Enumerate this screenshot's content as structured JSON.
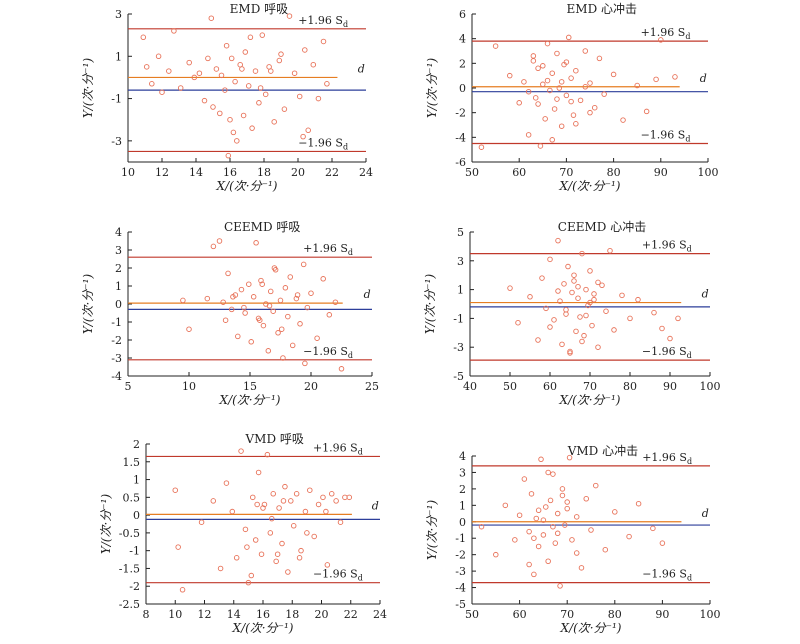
{
  "colors": {
    "axis": "#222222",
    "limit": "#c0392b",
    "bias": "#e67e22",
    "zero": "#2c3e9a",
    "point": "#e8735a"
  },
  "chart_data": [
    {
      "type": "scatter",
      "title": "EMD 呼吸",
      "xlabel": "X/(次·分⁻¹)",
      "ylabel": "Y/(次·分⁻¹)",
      "xlim": [
        10,
        24
      ],
      "ylim": [
        -4,
        3
      ],
      "xticks": [
        10,
        12,
        14,
        16,
        18,
        20,
        22,
        24
      ],
      "yticks": [
        -3,
        -1,
        1,
        3
      ],
      "upper_label": "+1.96 S",
      "lower_label": "−1.96 S",
      "sub": "d",
      "bias_label": "d",
      "upper": 2.3,
      "bias": 0.0,
      "zero": -0.6,
      "lower": -3.5,
      "x": [
        10.9,
        11.1,
        11.4,
        11.8,
        12.4,
        12.7,
        13.1,
        13.6,
        14.2,
        14.5,
        14.9,
        15.0,
        15.2,
        15.5,
        15.7,
        15.8,
        16.0,
        16.1,
        16.3,
        16.4,
        16.6,
        16.8,
        16.9,
        17.1,
        17.3,
        17.5,
        17.7,
        17.9,
        18.1,
        18.3,
        18.6,
        18.9,
        19.2,
        19.5,
        19.8,
        20.1,
        20.4,
        20.6,
        20.9,
        21.2,
        21.5,
        21.7,
        12.0,
        13.9,
        15.4,
        16.7,
        17.8,
        19.0,
        20.3,
        14.7,
        16.2,
        18.4,
        15.9,
        17.2
      ],
      "y": [
        1.9,
        0.5,
        -0.3,
        1.0,
        0.3,
        2.2,
        -0.5,
        0.7,
        0.2,
        -1.1,
        2.8,
        -1.4,
        0.4,
        0.1,
        -0.6,
        1.5,
        -2.0,
        0.9,
        -0.2,
        -3.0,
        0.6,
        -1.8,
        1.2,
        -0.4,
        -2.4,
        0.3,
        -1.2,
        2.0,
        -0.8,
        0.5,
        -2.1,
        0.8,
        -1.5,
        2.9,
        0.2,
        -0.9,
        1.3,
        -2.5,
        0.6,
        -1.0,
        1.7,
        -0.3,
        -0.7,
        0.0,
        -1.7,
        0.4,
        -0.5,
        1.1,
        -2.8,
        0.9,
        -2.6,
        0.3,
        -3.7,
        1.9
      ]
    },
    {
      "type": "scatter",
      "title": "EMD 心冲击",
      "xlabel": "X/(次·分⁻¹)",
      "ylabel": "Y/(次·分⁻¹)",
      "xlim": [
        50,
        100
      ],
      "ylim": [
        -6,
        6
      ],
      "xticks": [
        50,
        60,
        70,
        80,
        90,
        100
      ],
      "yticks": [
        -6,
        -4,
        -2,
        0,
        2,
        4,
        6
      ],
      "upper_label": "+1.96 S",
      "lower_label": "−1.96 S",
      "sub": "d",
      "bias_label": "d",
      "upper": 3.8,
      "bias": 0.1,
      "zero": -0.3,
      "lower": -4.5,
      "x": [
        52,
        55,
        58,
        60,
        61,
        62,
        63,
        63.5,
        64,
        64.5,
        65,
        65.5,
        66,
        66.5,
        67,
        67.5,
        68,
        68.5,
        69,
        69.5,
        70,
        70.5,
        71,
        71.5,
        72,
        73,
        74,
        75,
        76,
        77,
        78,
        80,
        82,
        85,
        87,
        89,
        90,
        93,
        62,
        64,
        66,
        68,
        70,
        72,
        74,
        65,
        67,
        69,
        71,
        63,
        75
      ],
      "y": [
        -4.8,
        3.4,
        1.0,
        -1.2,
        0.5,
        -3.8,
        2.2,
        -0.8,
        1.6,
        -4.7,
        0.3,
        -2.5,
        3.6,
        -0.2,
        1.2,
        -1.7,
        2.8,
        0.0,
        -3.1,
        1.9,
        -0.6,
        4.1,
        0.8,
        -2.2,
        1.4,
        -1.0,
        3.0,
        0.4,
        -1.6,
        2.4,
        -0.5,
        1.1,
        -2.6,
        0.2,
        -1.9,
        0.7,
        3.9,
        0.9,
        -0.3,
        -1.3,
        0.6,
        -0.9,
        2.1,
        -2.9,
        0.1,
        1.8,
        -4.2,
        0.5,
        -1.1,
        2.6,
        -2.0
      ]
    },
    {
      "type": "scatter",
      "title": "CEEMD 呼吸",
      "xlabel": "X/(次·分⁻¹)",
      "ylabel": "Y/(次·分⁻¹)",
      "xlim": [
        5,
        25
      ],
      "ylim": [
        -4,
        4
      ],
      "xticks": [
        5,
        10,
        15,
        20,
        25
      ],
      "yticks": [
        -4,
        -3,
        -2,
        -1,
        0,
        1,
        2,
        3,
        4
      ],
      "upper_label": "+1.96 S",
      "lower_label": "−1.96 S",
      "sub": "d",
      "bias_label": "d",
      "upper": 2.6,
      "bias": 0.05,
      "zero": -0.3,
      "lower": -3.1,
      "x": [
        9.5,
        10.0,
        11.5,
        12.0,
        12.5,
        12.8,
        13.0,
        13.2,
        13.5,
        13.8,
        14.0,
        14.3,
        14.6,
        14.9,
        15.1,
        15.3,
        15.5,
        15.7,
        15.9,
        16.1,
        16.3,
        16.5,
        16.7,
        16.9,
        17.1,
        17.3,
        17.5,
        17.7,
        17.9,
        18.1,
        18.3,
        18.5,
        18.8,
        19.1,
        19.4,
        19.7,
        20.0,
        20.5,
        21.0,
        21.5,
        22.0,
        22.5,
        14.5,
        16.0,
        17.6,
        18.9,
        15.8,
        17.0,
        19.5,
        13.6,
        16.6
      ],
      "y": [
        0.2,
        -1.4,
        0.3,
        3.2,
        3.5,
        0.1,
        -0.9,
        1.7,
        -0.3,
        0.5,
        -1.8,
        0.8,
        -0.5,
        1.1,
        -2.1,
        0.4,
        3.4,
        -0.8,
        1.3,
        -1.2,
        0.0,
        -2.6,
        0.7,
        -0.4,
        1.9,
        -1.6,
        0.2,
        -3.0,
        0.9,
        -0.7,
        1.5,
        -2.3,
        0.3,
        -1.1,
        2.2,
        -0.2,
        0.6,
        -1.9,
        1.4,
        -0.6,
        0.1,
        -3.6,
        -0.2,
        1.1,
        -1.4,
        0.5,
        -0.9,
        2.0,
        -3.3,
        0.4,
        -0.1
      ]
    },
    {
      "type": "scatter",
      "title": "CEEMD 心冲击",
      "xlabel": "X/(次·分⁻¹)",
      "ylabel": "Y/(次·分⁻¹)",
      "xlim": [
        40,
        100
      ],
      "ylim": [
        -5,
        5
      ],
      "xticks": [
        40,
        50,
        60,
        70,
        80,
        90,
        100
      ],
      "yticks": [
        -5,
        -3,
        -1,
        1,
        3,
        5
      ],
      "upper_label": "+1.96 S",
      "lower_label": "−1.96 S",
      "sub": "d",
      "bias_label": "d",
      "upper": 3.5,
      "bias": 0.1,
      "zero": -0.2,
      "lower": -3.9,
      "x": [
        50,
        52,
        55,
        57,
        58,
        59,
        60,
        61,
        62,
        62.5,
        63,
        63.5,
        64,
        64.5,
        65,
        65.5,
        66,
        66.5,
        67,
        67.5,
        68,
        68.5,
        69,
        69.5,
        70,
        70.5,
        71,
        72,
        73,
        74,
        75,
        76,
        78,
        80,
        82,
        86,
        88,
        90,
        92,
        60,
        62,
        64,
        66,
        68,
        70,
        72,
        65,
        67,
        69,
        71
      ],
      "y": [
        1.1,
        -1.3,
        0.5,
        -2.5,
        1.8,
        -0.3,
        3.1,
        -1.1,
        4.4,
        0.2,
        -2.8,
        1.4,
        -0.7,
        2.6,
        -3.4,
        0.8,
        1.6,
        -1.9,
        0.4,
        -0.9,
        3.5,
        -2.2,
        1.0,
        -0.1,
        2.3,
        -1.5,
        0.7,
        -3.0,
        1.3,
        -0.5,
        3.7,
        -1.8,
        0.6,
        -1.0,
        0.3,
        -0.6,
        -1.7,
        -2.4,
        -1.0,
        -1.6,
        0.9,
        -0.4,
        2.0,
        -2.6,
        0.1,
        1.5,
        -3.3,
        1.2,
        -0.8,
        0.3
      ]
    },
    {
      "type": "scatter",
      "title": "VMD 呼吸",
      "xlabel": "X/(次·分⁻¹)",
      "ylabel": "Y/(次·分⁻¹)",
      "xlim": [
        8,
        24
      ],
      "ylim": [
        -2.5,
        2.0
      ],
      "xticks": [
        8,
        10,
        12,
        14,
        16,
        18,
        20,
        22,
        24
      ],
      "yticks": [
        -2.5,
        -2.0,
        -1.5,
        -1.0,
        -0.5,
        0,
        0.5,
        1.0,
        1.5,
        2.0
      ],
      "upper_label": "+1.96 S",
      "lower_label": "−1.96 S",
      "sub": "d",
      "bias_label": "d",
      "upper": 1.65,
      "bias": 0.02,
      "zero": -0.12,
      "lower": -1.9,
      "x": [
        10.0,
        10.2,
        10.5,
        11.8,
        12.6,
        13.1,
        13.5,
        13.9,
        14.2,
        14.5,
        14.8,
        15.0,
        15.3,
        15.5,
        15.7,
        15.9,
        16.1,
        16.3,
        16.5,
        16.7,
        16.9,
        17.1,
        17.3,
        17.5,
        17.7,
        17.9,
        18.1,
        18.3,
        18.6,
        18.9,
        19.2,
        19.5,
        19.8,
        20.1,
        20.4,
        20.7,
        21.0,
        21.3,
        21.6,
        21.9,
        15.2,
        16.6,
        17.4,
        18.5,
        14.9,
        16.0,
        19.0,
        20.3,
        17.0,
        15.6
      ],
      "y": [
        0.7,
        -0.9,
        -2.1,
        -0.2,
        0.4,
        -1.5,
        0.9,
        0.1,
        -1.2,
        1.8,
        -0.4,
        -1.9,
        0.5,
        -0.7,
        1.2,
        -1.1,
        0.3,
        1.7,
        -0.5,
        0.6,
        -1.3,
        0.2,
        -0.8,
        0.8,
        -1.6,
        0.4,
        -0.3,
        0.6,
        -1.0,
        0.1,
        0.7,
        -0.6,
        0.3,
        0.5,
        -1.4,
        0.6,
        0.4,
        -0.2,
        0.5,
        0.5,
        -1.7,
        -0.1,
        0.4,
        -1.2,
        -0.9,
        0.2,
        -0.5,
        0.1,
        -1.1,
        0.3
      ]
    },
    {
      "type": "scatter",
      "title": "VMD 心冲击",
      "xlabel": "X/(次·分⁻¹)",
      "ylabel": "Y/(次·分⁻¹)",
      "xlim": [
        50,
        100
      ],
      "ylim": [
        -5,
        4
      ],
      "xticks": [
        50,
        60,
        70,
        80,
        90,
        100
      ],
      "yticks": [
        -5,
        -4,
        -3,
        -2,
        -1,
        0,
        1,
        2,
        3,
        4
      ],
      "upper_label": "+1.96 S",
      "lower_label": "−1.96 S",
      "sub": "d",
      "bias_label": "d",
      "upper": 3.4,
      "bias": 0.0,
      "zero": -0.2,
      "lower": -3.7,
      "x": [
        52,
        55,
        57,
        59,
        60,
        61,
        62,
        62.5,
        63,
        63.5,
        64,
        64.5,
        65,
        65.5,
        66,
        66.5,
        67,
        67.5,
        68,
        68.5,
        69,
        69.5,
        70,
        70.5,
        71,
        72,
        73,
        74,
        75,
        76,
        78,
        80,
        83,
        85,
        88,
        90,
        62,
        64,
        66,
        68,
        70,
        72,
        65,
        67,
        69,
        63
      ],
      "y": [
        -0.3,
        -2.0,
        1.0,
        -1.1,
        0.4,
        2.6,
        -0.6,
        1.7,
        -3.2,
        0.2,
        -1.5,
        3.8,
        -0.8,
        0.9,
        -2.4,
        1.3,
        2.9,
        -1.3,
        0.5,
        -3.9,
        1.6,
        -0.2,
        0.8,
        3.9,
        -1.1,
        0.3,
        -2.8,
        1.4,
        -0.5,
        2.2,
        -1.7,
        0.6,
        -0.9,
        1.1,
        -0.4,
        -1.3,
        -2.6,
        0.7,
        3.0,
        -0.7,
        1.2,
        -1.9,
        0.1,
        -0.3,
        2.0,
        -1.0
      ]
    }
  ]
}
